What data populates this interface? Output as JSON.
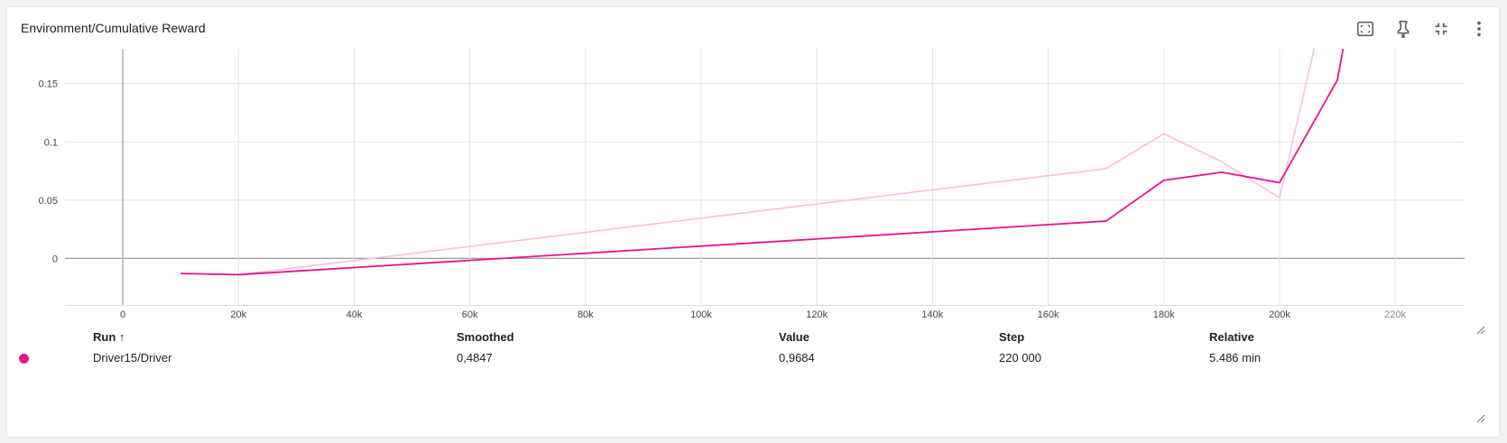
{
  "card": {
    "title": "Environment/Cumulative Reward"
  },
  "toolbar": {
    "icons": [
      "fit-domain-icon",
      "pin-icon",
      "collapse-icon",
      "more-vert-icon"
    ]
  },
  "colors": {
    "smoothed": "#e8138f",
    "raw": "#f7bfdf",
    "grid": "#e3e3e3",
    "axis": "#9e9e9e",
    "dot": "#e8138f"
  },
  "chart_data": {
    "type": "line",
    "title": "Environment/Cumulative Reward",
    "xlabel": "",
    "ylabel": "",
    "xlim": [
      -10000,
      232000
    ],
    "ylim": [
      -0.04,
      0.18
    ],
    "x_ticks": [
      0,
      20000,
      40000,
      60000,
      80000,
      100000,
      120000,
      140000,
      160000,
      180000,
      200000,
      220000
    ],
    "x_tick_labels": [
      "0",
      "20k",
      "40k",
      "60k",
      "80k",
      "100k",
      "120k",
      "140k",
      "160k",
      "180k",
      "200k",
      "220k"
    ],
    "y_ticks": [
      0,
      0.05,
      0.1,
      0.15
    ],
    "y_tick_labels": [
      "0",
      "0.05",
      "0.1",
      "0.15"
    ],
    "grid": true,
    "series": [
      {
        "name": "Driver15/Driver",
        "kind": "raw",
        "x": [
          10000,
          20000,
          170000,
          180000,
          190000,
          200000,
          206000
        ],
        "y": [
          -0.013,
          -0.014,
          0.077,
          0.107,
          0.083,
          0.052,
          0.18
        ]
      },
      {
        "name": "Driver15/Driver",
        "kind": "smoothed",
        "x": [
          10000,
          20000,
          170000,
          180000,
          190000,
          200000,
          210000,
          211000
        ],
        "y": [
          -0.013,
          -0.014,
          0.032,
          0.067,
          0.074,
          0.065,
          0.153,
          0.18
        ]
      }
    ]
  },
  "table": {
    "headers": {
      "run": "Run ↑",
      "smoothed": "Smoothed",
      "value": "Value",
      "step": "Step",
      "relative": "Relative"
    },
    "rows": [
      {
        "run": "Driver15/Driver",
        "smoothed": "0,4847",
        "value": "0,9684",
        "step": "220 000",
        "relative": "5.486 min"
      }
    ]
  }
}
